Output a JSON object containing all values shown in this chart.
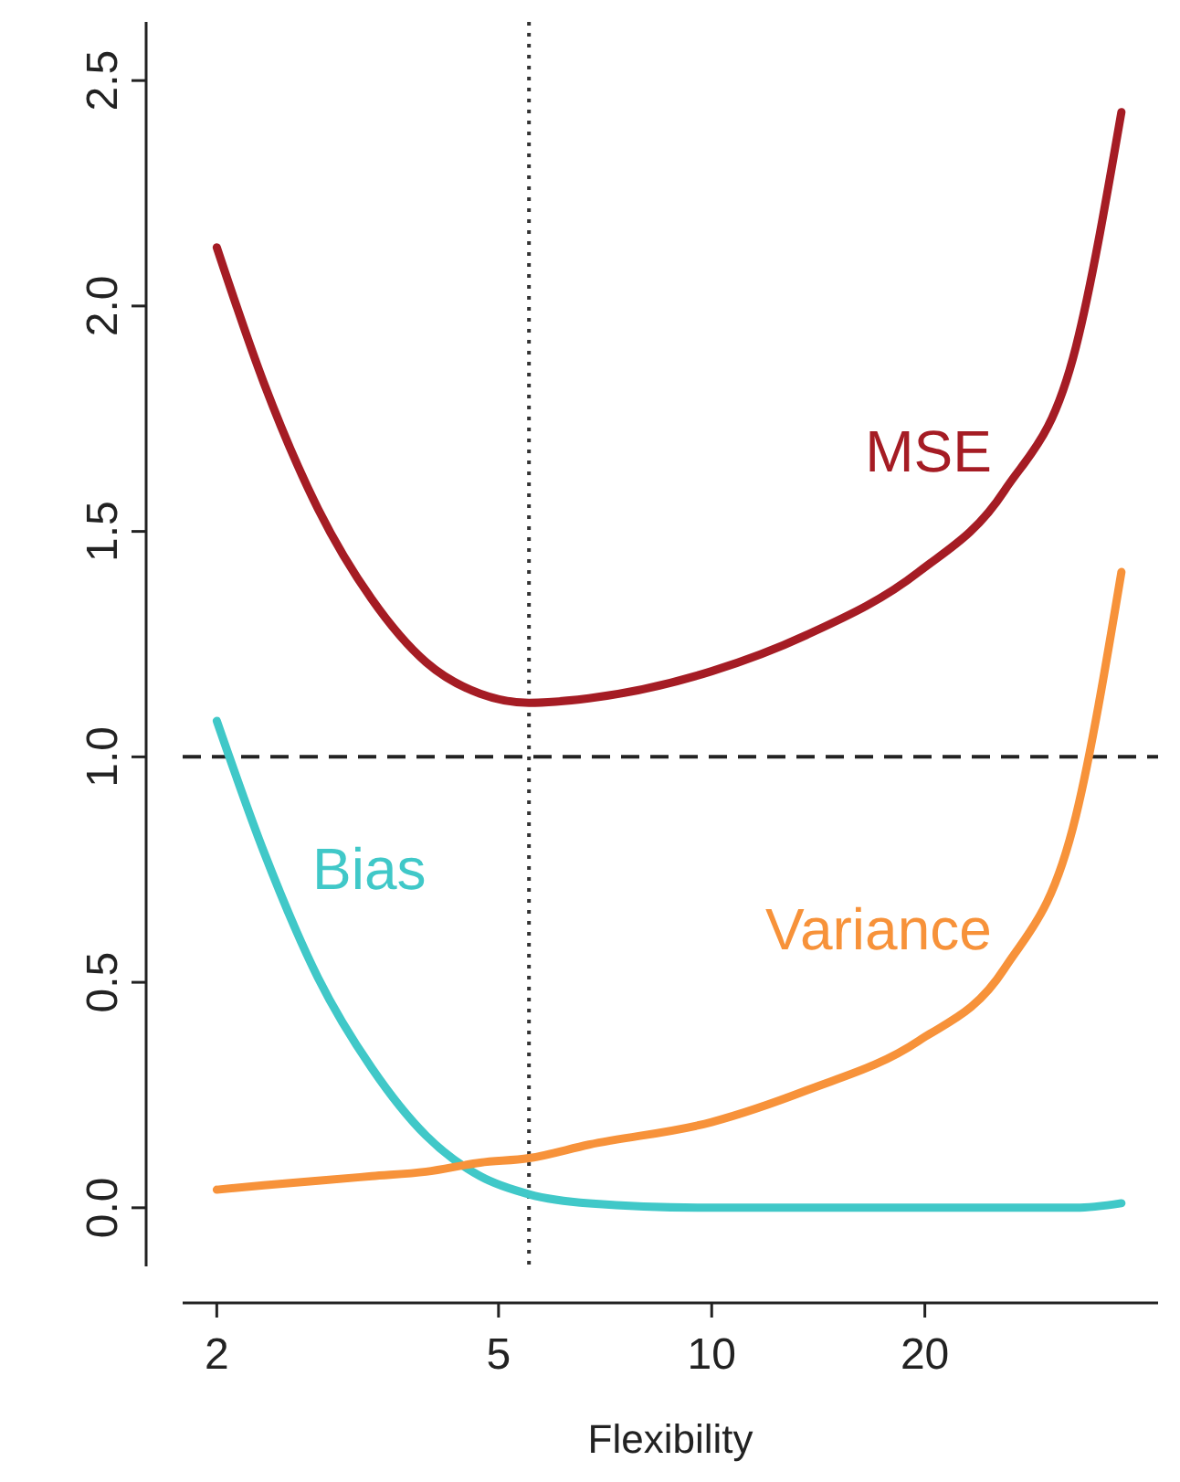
{
  "chart_data": {
    "type": "line",
    "xlabel": "Flexibility",
    "log": "x",
    "xlim": [
      1.79,
      42.7
    ],
    "xticks": [
      2,
      5,
      10,
      20
    ],
    "ylim": [
      -0.13,
      2.63
    ],
    "yticks": [
      {
        "value": 0,
        "label": "0.0"
      },
      {
        "value": 0.5,
        "label": "0.5"
      },
      {
        "value": 1,
        "label": "1.0"
      },
      {
        "value": 1.5,
        "label": "1.5"
      },
      {
        "value": 2,
        "label": "2.0"
      },
      {
        "value": 2.5,
        "label": "2.5"
      }
    ],
    "grid": false,
    "marker": "none",
    "line_style": "solid",
    "x": [
      2,
      2.33,
      2.78,
      3.31,
      3.95,
      4.71,
      5.52,
      6.71,
      10,
      13.6,
      19.6,
      25.9,
      32.7,
      37.9
    ],
    "series": [
      {
        "name": "MSE",
        "color": "#a51c24",
        "values": [
          2.13,
          1.83,
          1.55,
          1.35,
          1.21,
          1.14,
          1.12,
          1.13,
          1.19,
          1.27,
          1.41,
          1.59,
          1.91,
          2.43
        ]
      },
      {
        "name": "Bias",
        "color": "#40c8c8",
        "values": [
          1.08,
          0.79,
          0.51,
          0.31,
          0.16,
          0.07,
          0.03,
          0.01,
          0,
          0,
          0,
          0,
          0,
          0.01
        ]
      },
      {
        "name": "Variance",
        "color": "#f7923a",
        "values": [
          0.04,
          0.05,
          0.06,
          0.07,
          0.08,
          0.1,
          0.11,
          0.14,
          0.19,
          0.26,
          0.37,
          0.53,
          0.87,
          1.41
        ]
      }
    ],
    "ref_lines": [
      {
        "axis": "y",
        "value": 1,
        "line_style": "dashed"
      },
      {
        "axis": "x",
        "value": 5.52,
        "line_style": "dotted"
      }
    ]
  }
}
